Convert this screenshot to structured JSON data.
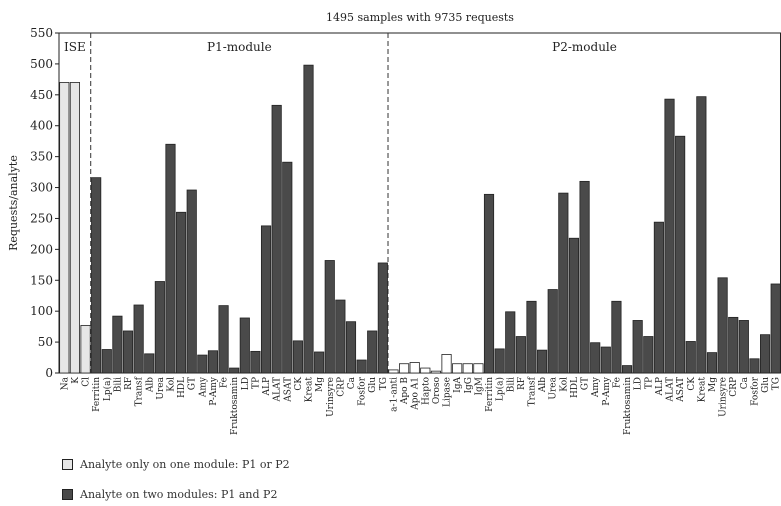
{
  "chart_data": {
    "type": "bar",
    "title": "1495 samples with 9735 requests",
    "xlabel": "",
    "ylabel": "Requests/analyte",
    "ylim": [
      0,
      550
    ],
    "yticks": [
      0,
      50,
      100,
      150,
      200,
      250,
      300,
      350,
      400,
      450,
      500,
      550
    ],
    "grid": false,
    "sections": [
      "ISE",
      "P1-module",
      "P2-module"
    ],
    "categories": [
      "Na",
      "K",
      "Cl",
      "Ferritin",
      "Lp(a)",
      "Bili",
      "RF",
      "Transf",
      "Alb",
      "Urea",
      "Kol",
      "HDL",
      "GT",
      "Amy",
      "P-Amy",
      "Fe",
      "Fruktosamin",
      "LD",
      "TP",
      "ALP",
      "ALAT",
      "ASAT",
      "CK",
      "Kreat",
      "Mg",
      "Urinsyre",
      "CRP",
      "Ca",
      "Fosfor",
      "Glu",
      "TG",
      "a-1-anti",
      "Apo B",
      "Apo A1",
      "Hapto",
      "Oroso",
      "Lipase",
      "IgA",
      "IgG",
      "IgM",
      "Ferritin",
      "Lp(a)",
      "Bili",
      "RF",
      "Transf",
      "Alb",
      "Urea",
      "Kol",
      "HDL",
      "GT",
      "Amy",
      "P-Amy",
      "Fe",
      "Fruktosamin",
      "LD",
      "TP",
      "ALP",
      "ALAT",
      "ASAT",
      "CK",
      "Kreat",
      "Mg",
      "Urinsyre",
      "CRP",
      "Ca",
      "Fosfor",
      "Glu",
      "TG"
    ],
    "values": [
      470,
      470,
      77,
      316,
      38,
      92,
      68,
      110,
      31,
      148,
      370,
      260,
      296,
      29,
      36,
      109,
      8,
      89,
      35,
      238,
      433,
      341,
      52,
      498,
      34,
      182,
      118,
      83,
      21,
      68,
      178,
      5,
      15,
      17,
      8,
      3,
      30,
      15,
      15,
      15,
      289,
      39,
      99,
      59,
      116,
      37,
      135,
      291,
      218,
      310,
      49,
      42,
      116,
      12,
      85,
      59,
      244,
      443,
      383,
      51,
      447,
      33,
      154,
      90,
      85,
      23,
      62,
      144
    ],
    "kinds": [
      "single",
      "single",
      "single",
      "dual",
      "dual",
      "dual",
      "dual",
      "dual",
      "dual",
      "dual",
      "dual",
      "dual",
      "dual",
      "dual",
      "dual",
      "dual",
      "dual",
      "dual",
      "dual",
      "dual",
      "dual",
      "dual",
      "dual",
      "dual",
      "dual",
      "dual",
      "dual",
      "dual",
      "dual",
      "dual",
      "dual",
      "single",
      "single",
      "single",
      "single",
      "single",
      "single",
      "single",
      "single",
      "single",
      "dual",
      "dual",
      "dual",
      "dual",
      "dual",
      "dual",
      "dual",
      "dual",
      "dual",
      "dual",
      "dual",
      "dual",
      "dual",
      "dual",
      "dual",
      "dual",
      "dual",
      "dual",
      "dual",
      "dual",
      "dual",
      "dual",
      "dual",
      "dual",
      "dual",
      "dual",
      "dual",
      "dual"
    ],
    "legend": [
      {
        "label": "Analyte only on one module: P1 or P2",
        "color": "#e6e6e6"
      },
      {
        "label": "Analyte on two modules: P1 and P2",
        "color": "#4a4a4a"
      }
    ],
    "legend_position": "bottom-left"
  },
  "colors": {
    "single_fill": "#e6e6e6",
    "single_fill_p2": "#ffffff",
    "dual_fill": "#4a4a4a",
    "stroke": "#222222"
  }
}
